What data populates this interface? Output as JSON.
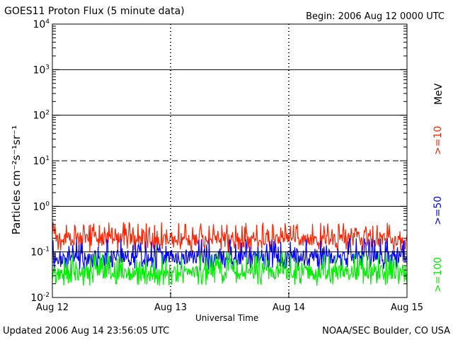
{
  "header": {
    "title": "GOES11 Proton Flux (5 minute data)",
    "begin": "Begin: 2006 Aug 12 0000 UTC"
  },
  "footer": {
    "updated": "Updated 2006 Aug 14 23:56:05 UTC",
    "credit": "NOAA/SEC Boulder, CO USA"
  },
  "chart_data": {
    "type": "line",
    "title": "GOES11 Proton Flux (5 minute data)",
    "xlabel": "Universal Time",
    "ylabel": "Particles cm⁻²s⁻¹sr⁻¹",
    "yscale": "log",
    "ylim": [
      0.01,
      10000
    ],
    "xlim": [
      0,
      3
    ],
    "x_ticks": [
      "Aug 12",
      "Aug 13",
      "Aug 14",
      "Aug 15"
    ],
    "y_ticks": [
      {
        "base": "10",
        "exp": "-2"
      },
      {
        "base": "10",
        "exp": "-1"
      },
      {
        "base": "10",
        "exp": "0"
      },
      {
        "base": "10",
        "exp": "1"
      },
      {
        "base": "10",
        "exp": "2"
      },
      {
        "base": "10",
        "exp": "3"
      },
      {
        "base": "10",
        "exp": "4"
      }
    ],
    "unit_label": "MeV",
    "series": [
      {
        "name": ">=10",
        "color": "#ff2200",
        "typical": 0.19,
        "low": 0.1,
        "high": 0.45
      },
      {
        "name": ">=50",
        "color": "#0000ff",
        "typical": 0.075,
        "low": 0.04,
        "high": 0.2
      },
      {
        "name": ">=100",
        "color": "#00ee00",
        "typical": 0.035,
        "low": 0.018,
        "high": 0.1
      }
    ],
    "grid": true
  }
}
